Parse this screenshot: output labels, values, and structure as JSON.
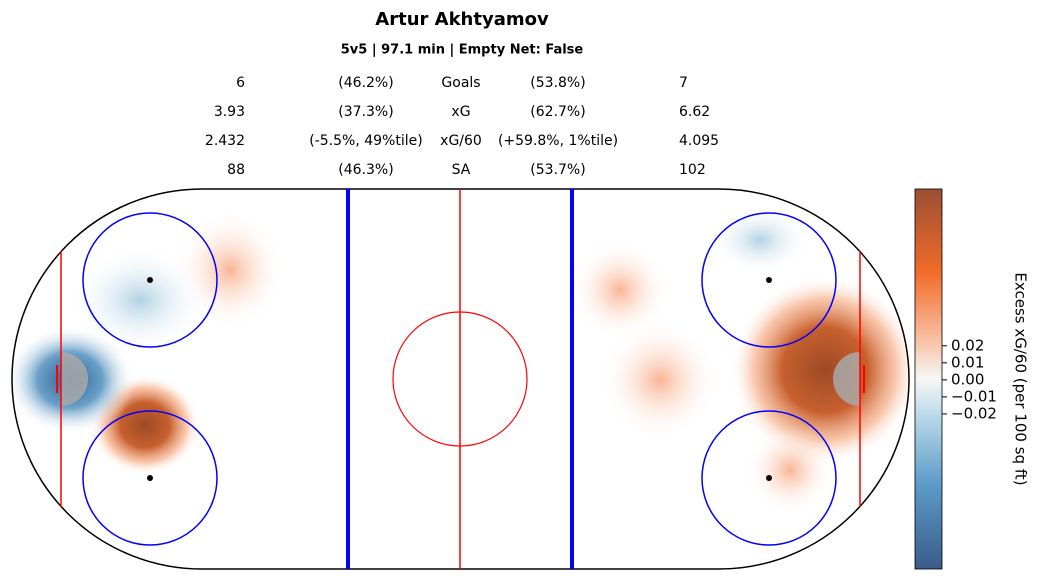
{
  "chart_data": {
    "type": "heatmap",
    "title": "Artur Akhtyamov",
    "subtitle": "5v5 | 97.1 min | Empty Net: False",
    "stats": {
      "rows": [
        [
          "6",
          "(46.2%)",
          "Goals",
          "(53.8%)",
          "7"
        ],
        [
          "3.93",
          "(37.3%)",
          "xG",
          "(62.7%)",
          "6.62"
        ],
        [
          "2.432",
          "(-5.5%, 49%tile)",
          "xG/60",
          "(+59.8%, 1%tile)",
          "4.095"
        ],
        [
          "88",
          "(46.3%)",
          "SA",
          "(53.7%)",
          "102"
        ]
      ]
    },
    "colorbar": {
      "label": "Excess xG/60 (per 100 sq ft)",
      "ylim": [
        -0.111,
        0.112
      ],
      "yticks": [
        0.02,
        0.01,
        {
          "value": 0,
          "label": "0.00"
        },
        {
          "value": -0.01,
          "label": "−0.01"
        },
        {
          "value": -0.02,
          "label": "−0.02"
        }
      ]
    }
  }
}
